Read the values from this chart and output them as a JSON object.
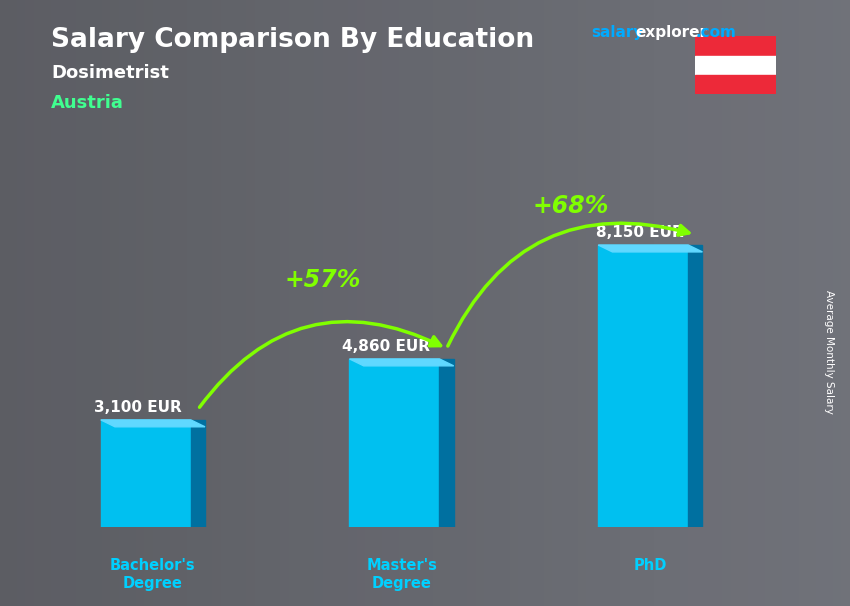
{
  "title": "Salary Comparison By Education",
  "subtitle": "Dosimetrist",
  "country": "Austria",
  "categories": [
    "Bachelor's\nDegree",
    "Master's\nDegree",
    "PhD"
  ],
  "values": [
    3100,
    4860,
    8150
  ],
  "labels": [
    "3,100 EUR",
    "4,860 EUR",
    "8,150 EUR"
  ],
  "pct_changes": [
    "+57%",
    "+68%"
  ],
  "bar_color_face": "#00C0F0",
  "bar_color_dark": "#0070A0",
  "bar_color_top": "#60D8FF",
  "bg_color": "#606070",
  "title_color": "#FFFFFF",
  "subtitle_color": "#FFFFFF",
  "country_color": "#40FF90",
  "label_color": "#FFFFFF",
  "pct_color": "#80FF00",
  "xlabel_color": "#00D0FF",
  "site_salary_color": "#00AAFF",
  "site_explorer_color": "#FFFFFF",
  "site_com_color": "#00AAFF",
  "ylabel_text": "Average Monthly Salary",
  "ylabel_color": "#FFFFFF",
  "flag_red": "#ED2939",
  "flag_white": "#FFFFFF",
  "ylim_max": 10500,
  "bar_positions": [
    0.5,
    1.55,
    2.6
  ],
  "bar_width": 0.38
}
